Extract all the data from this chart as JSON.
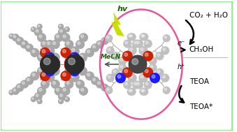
{
  "background_color": "#ffffff",
  "border_color": "#90ee90",
  "border_linewidth": 2.0,
  "circle_color": "#e8559a",
  "circle_linewidth": 1.8,
  "hv_text": "hv",
  "hv_color": "#1a6600",
  "hv_fontsize": 8,
  "mecn_text": "MeCN",
  "mecn_color": "#1a6600",
  "mecn_fontsize": 6.5,
  "reaction_labels": {
    "CO2_H2O": "CO₂ + H₂O",
    "e_minus": "e⁻",
    "CH3OH": "CH₃OH",
    "h_plus": "h⁺",
    "TEOA": "TEOA",
    "TEOA_star": "TEOA*"
  },
  "text_fontsize": 7.5,
  "arrow_color": "#111111",
  "figsize": [
    3.39,
    1.89
  ],
  "dpi": 100,
  "atom_gray": "#a8a8a8",
  "atom_gray_dark": "#787878",
  "atom_red": "#cc2200",
  "atom_blue": "#1a1aff",
  "atom_uranium": "#2a2a2a",
  "bond_color": "#999999"
}
